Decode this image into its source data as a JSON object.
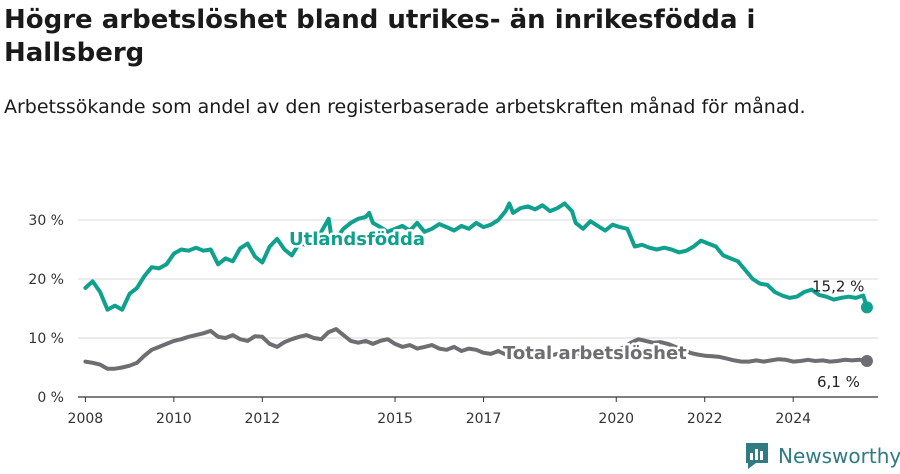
{
  "title": "Högre arbetslöshet bland utrikes- än inrikesfödda i Hallsberg",
  "subtitle": "Arbetssökande som andel av den registerbaserade arbetskraften månad för månad.",
  "brand": "Newsworthy",
  "colors": {
    "foreign": "#0fa08e",
    "total": "#6e6e72",
    "grid": "#d9d9d9",
    "axis": "#333333",
    "brand": "#2f7a83"
  },
  "chart_data": {
    "type": "line",
    "x_ticks": [
      "2008",
      "2010",
      "2012",
      "2015",
      "2017",
      "2020",
      "2022",
      "2024"
    ],
    "y_ticks": [
      "0 %",
      "10 %",
      "20 %",
      "30 %"
    ],
    "ylim": [
      0,
      33
    ],
    "xlim": [
      "2007-11",
      "2025-12"
    ],
    "grid": true,
    "series": [
      {
        "name": "Utlandsfödda",
        "end_label": "15,2 %",
        "points": [
          [
            "2008-01",
            18.5
          ],
          [
            "2008-03",
            19.6
          ],
          [
            "2008-05",
            17.8
          ],
          [
            "2008-07",
            14.8
          ],
          [
            "2008-09",
            15.5
          ],
          [
            "2008-11",
            14.8
          ],
          [
            "2009-01",
            17.5
          ],
          [
            "2009-03",
            18.5
          ],
          [
            "2009-05",
            20.5
          ],
          [
            "2009-07",
            22.0
          ],
          [
            "2009-09",
            21.8
          ],
          [
            "2009-11",
            22.5
          ],
          [
            "2010-01",
            24.3
          ],
          [
            "2010-03",
            25.0
          ],
          [
            "2010-05",
            24.8
          ],
          [
            "2010-07",
            25.3
          ],
          [
            "2010-09",
            24.8
          ],
          [
            "2010-11",
            25.0
          ],
          [
            "2011-01",
            22.5
          ],
          [
            "2011-03",
            23.5
          ],
          [
            "2011-05",
            23.0
          ],
          [
            "2011-07",
            25.2
          ],
          [
            "2011-09",
            26.0
          ],
          [
            "2011-11",
            23.8
          ],
          [
            "2012-01",
            22.8
          ],
          [
            "2012-03",
            25.5
          ],
          [
            "2012-05",
            26.8
          ],
          [
            "2012-07",
            25.0
          ],
          [
            "2012-09",
            24.0
          ],
          [
            "2012-11",
            26.0
          ],
          [
            "2013-01",
            25.8
          ],
          [
            "2013-03",
            27.0
          ],
          [
            "2013-05",
            28.0
          ],
          [
            "2013-07",
            30.2
          ],
          [
            "2013-08",
            26.0
          ],
          [
            "2013-11",
            28.5
          ],
          [
            "2014-01",
            29.5
          ],
          [
            "2014-03",
            30.2
          ],
          [
            "2014-05",
            30.5
          ],
          [
            "2014-06",
            31.2
          ],
          [
            "2014-07",
            29.5
          ],
          [
            "2014-09",
            28.8
          ],
          [
            "2014-11",
            28.0
          ],
          [
            "2015-01",
            28.5
          ],
          [
            "2015-03",
            29.0
          ],
          [
            "2015-05",
            28.2
          ],
          [
            "2015-07",
            29.5
          ],
          [
            "2015-09",
            28.0
          ],
          [
            "2015-11",
            28.5
          ],
          [
            "2016-01",
            29.3
          ],
          [
            "2016-03",
            28.8
          ],
          [
            "2016-05",
            28.2
          ],
          [
            "2016-07",
            29.0
          ],
          [
            "2016-09",
            28.5
          ],
          [
            "2016-11",
            29.5
          ],
          [
            "2017-01",
            28.8
          ],
          [
            "2017-03",
            29.2
          ],
          [
            "2017-05",
            30.0
          ],
          [
            "2017-07",
            31.5
          ],
          [
            "2017-08",
            32.8
          ],
          [
            "2017-09",
            31.2
          ],
          [
            "2017-11",
            32.0
          ],
          [
            "2018-01",
            32.3
          ],
          [
            "2018-03",
            31.8
          ],
          [
            "2018-05",
            32.5
          ],
          [
            "2018-07",
            31.5
          ],
          [
            "2018-09",
            32.0
          ],
          [
            "2018-11",
            32.8
          ],
          [
            "2019-01",
            31.5
          ],
          [
            "2019-02",
            29.5
          ],
          [
            "2019-04",
            28.5
          ],
          [
            "2019-06",
            29.8
          ],
          [
            "2019-08",
            29.0
          ],
          [
            "2019-10",
            28.2
          ],
          [
            "2019-12",
            29.2
          ],
          [
            "2020-02",
            28.8
          ],
          [
            "2020-04",
            28.5
          ],
          [
            "2020-06",
            25.5
          ],
          [
            "2020-08",
            25.8
          ],
          [
            "2020-10",
            25.3
          ],
          [
            "2020-12",
            25.0
          ],
          [
            "2021-02",
            25.3
          ],
          [
            "2021-04",
            25.0
          ],
          [
            "2021-06",
            24.5
          ],
          [
            "2021-08",
            24.8
          ],
          [
            "2021-10",
            25.5
          ],
          [
            "2021-12",
            26.5
          ],
          [
            "2022-02",
            26.0
          ],
          [
            "2022-04",
            25.5
          ],
          [
            "2022-06",
            24.0
          ],
          [
            "2022-08",
            23.5
          ],
          [
            "2022-10",
            23.0
          ],
          [
            "2022-12",
            21.5
          ],
          [
            "2023-02",
            20.0
          ],
          [
            "2023-04",
            19.2
          ],
          [
            "2023-06",
            19.0
          ],
          [
            "2023-08",
            17.8
          ],
          [
            "2023-10",
            17.2
          ],
          [
            "2023-12",
            16.8
          ],
          [
            "2024-02",
            17.0
          ],
          [
            "2024-04",
            17.8
          ],
          [
            "2024-06",
            18.2
          ],
          [
            "2024-08",
            17.3
          ],
          [
            "2024-10",
            17.0
          ],
          [
            "2024-12",
            16.5
          ],
          [
            "2025-02",
            16.8
          ],
          [
            "2025-04",
            17.0
          ],
          [
            "2025-06",
            16.8
          ],
          [
            "2025-08",
            17.2
          ],
          [
            "2025-09",
            15.2
          ]
        ]
      },
      {
        "name": "Total arbetslöshet",
        "end_label": "6,1 %",
        "points": [
          [
            "2008-01",
            6.0
          ],
          [
            "2008-03",
            5.8
          ],
          [
            "2008-05",
            5.5
          ],
          [
            "2008-07",
            4.8
          ],
          [
            "2008-09",
            4.8
          ],
          [
            "2008-11",
            5.0
          ],
          [
            "2009-01",
            5.3
          ],
          [
            "2009-03",
            5.8
          ],
          [
            "2009-05",
            7.0
          ],
          [
            "2009-07",
            8.0
          ],
          [
            "2009-09",
            8.5
          ],
          [
            "2009-11",
            9.0
          ],
          [
            "2010-01",
            9.5
          ],
          [
            "2010-03",
            9.8
          ],
          [
            "2010-05",
            10.2
          ],
          [
            "2010-07",
            10.5
          ],
          [
            "2010-09",
            10.8
          ],
          [
            "2010-11",
            11.2
          ],
          [
            "2011-01",
            10.2
          ],
          [
            "2011-03",
            10.0
          ],
          [
            "2011-05",
            10.5
          ],
          [
            "2011-07",
            9.8
          ],
          [
            "2011-09",
            9.5
          ],
          [
            "2011-11",
            10.3
          ],
          [
            "2012-01",
            10.2
          ],
          [
            "2012-03",
            9.0
          ],
          [
            "2012-05",
            8.5
          ],
          [
            "2012-07",
            9.3
          ],
          [
            "2012-09",
            9.8
          ],
          [
            "2012-11",
            10.2
          ],
          [
            "2013-01",
            10.5
          ],
          [
            "2013-03",
            10.0
          ],
          [
            "2013-05",
            9.8
          ],
          [
            "2013-07",
            11.0
          ],
          [
            "2013-09",
            11.5
          ],
          [
            "2013-11",
            10.5
          ],
          [
            "2014-01",
            9.5
          ],
          [
            "2014-03",
            9.2
          ],
          [
            "2014-05",
            9.5
          ],
          [
            "2014-07",
            9.0
          ],
          [
            "2014-09",
            9.5
          ],
          [
            "2014-11",
            9.8
          ],
          [
            "2015-01",
            9.0
          ],
          [
            "2015-03",
            8.5
          ],
          [
            "2015-05",
            8.8
          ],
          [
            "2015-07",
            8.2
          ],
          [
            "2015-09",
            8.5
          ],
          [
            "2015-11",
            8.8
          ],
          [
            "2016-01",
            8.2
          ],
          [
            "2016-03",
            8.0
          ],
          [
            "2016-05",
            8.5
          ],
          [
            "2016-07",
            7.8
          ],
          [
            "2016-09",
            8.2
          ],
          [
            "2016-11",
            8.0
          ],
          [
            "2017-01",
            7.5
          ],
          [
            "2017-03",
            7.3
          ],
          [
            "2017-05",
            7.8
          ],
          [
            "2017-07",
            7.2
          ],
          [
            "2017-09",
            7.5
          ],
          [
            "2017-11",
            7.8
          ],
          [
            "2018-01",
            8.0
          ],
          [
            "2018-03",
            7.5
          ],
          [
            "2018-05",
            7.2
          ],
          [
            "2018-07",
            7.0
          ],
          [
            "2018-09",
            7.3
          ],
          [
            "2018-11",
            7.5
          ],
          [
            "2019-01",
            7.8
          ],
          [
            "2019-03",
            7.2
          ],
          [
            "2019-05",
            7.0
          ],
          [
            "2019-07",
            7.5
          ],
          [
            "2019-09",
            7.6
          ],
          [
            "2019-11",
            7.5
          ],
          [
            "2020-01",
            8.0
          ],
          [
            "2020-03",
            8.4
          ],
          [
            "2020-05",
            9.2
          ],
          [
            "2020-07",
            9.8
          ],
          [
            "2020-09",
            9.5
          ],
          [
            "2020-11",
            9.2
          ],
          [
            "2021-01",
            9.3
          ],
          [
            "2021-03",
            9.0
          ],
          [
            "2021-05",
            8.5
          ],
          [
            "2021-07",
            8.2
          ],
          [
            "2021-09",
            7.5
          ],
          [
            "2021-11",
            7.2
          ],
          [
            "2022-01",
            7.0
          ],
          [
            "2022-03",
            6.9
          ],
          [
            "2022-05",
            6.8
          ],
          [
            "2022-07",
            6.5
          ],
          [
            "2022-09",
            6.2
          ],
          [
            "2022-11",
            6.0
          ],
          [
            "2023-01",
            6.0
          ],
          [
            "2023-03",
            6.2
          ],
          [
            "2023-05",
            6.0
          ],
          [
            "2023-07",
            6.2
          ],
          [
            "2023-09",
            6.4
          ],
          [
            "2023-11",
            6.3
          ],
          [
            "2024-01",
            6.0
          ],
          [
            "2024-03",
            6.1
          ],
          [
            "2024-05",
            6.3
          ],
          [
            "2024-07",
            6.1
          ],
          [
            "2024-09",
            6.2
          ],
          [
            "2024-11",
            6.0
          ],
          [
            "2025-01",
            6.1
          ],
          [
            "2025-03",
            6.3
          ],
          [
            "2025-05",
            6.2
          ],
          [
            "2025-07",
            6.3
          ],
          [
            "2025-09",
            6.1
          ]
        ]
      }
    ]
  }
}
